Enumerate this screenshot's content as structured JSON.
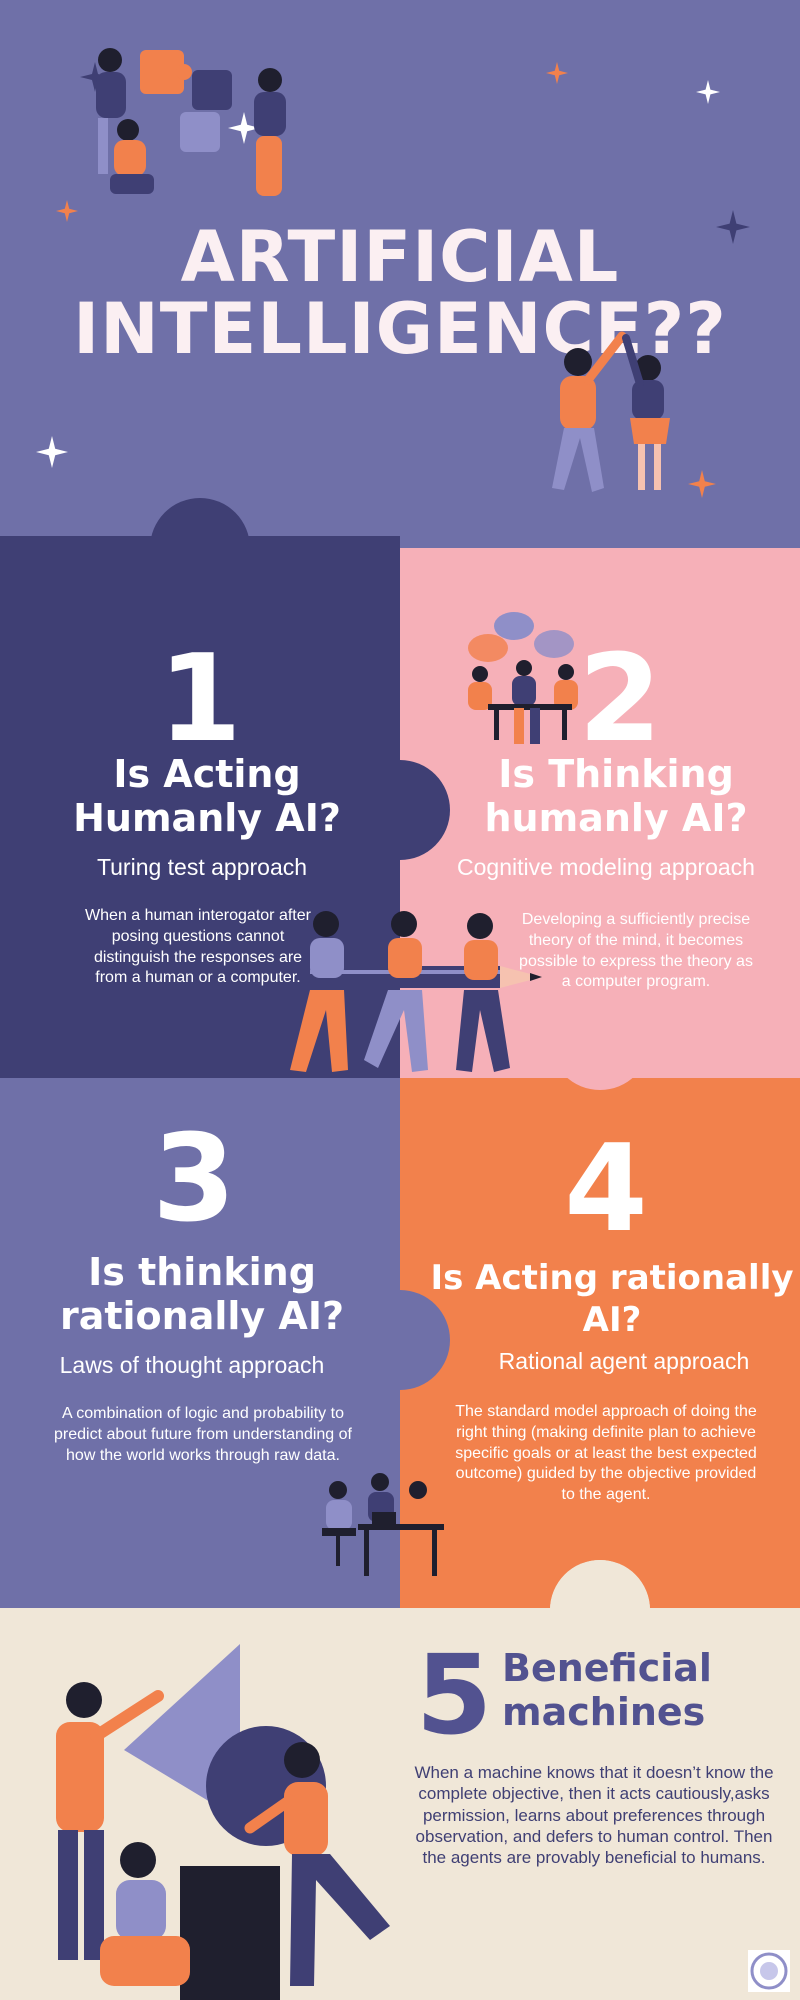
{
  "header": {
    "title_line1": "ARTIFICIAL",
    "title_line2": "INTELLIGENCE??"
  },
  "sections": [
    {
      "number": "1",
      "heading_line1": "Is Acting",
      "heading_line2": "Humanly AI?",
      "approach": "Turing test approach",
      "description": "When a human interogator after posing questions cannot distinguish the responses are from a human or a computer."
    },
    {
      "number": "2",
      "heading_line1": "Is Thinking",
      "heading_line2": "humanly AI?",
      "approach": "Cognitive modeling approach",
      "description": "Developing a sufficiently precise theory of the mind, it becomes possible to express the theory as a computer program."
    },
    {
      "number": "3",
      "heading_line1": "Is thinking",
      "heading_line2": "rationally AI?",
      "approach": "Laws of thought approach",
      "description": "A combination of logic and probability to predict about future from understanding of how the world works through raw data."
    },
    {
      "number": "4",
      "heading_line1": "Is Acting rationally",
      "heading_line2": "AI?",
      "approach": "Rational agent approach",
      "description": "The standard model approach of doing the right thing (making definite plan to achieve specific goals or at least the best expected outcome) guided by the objective provided to the agent."
    },
    {
      "number": "5",
      "heading_line1": "Beneficial",
      "heading_line2": "machines",
      "description": "When a machine knows that it doesn’t know the complete objective, then it acts cautiously,asks permission, learns about preferences through observation, and defers to human control. Then the agents are provably beneficial to humans."
    }
  ],
  "colors": {
    "header_bg": "#6f70a8",
    "dark_navy": "#3f3f74",
    "pink": "#f6b0b8",
    "purple": "#6f70a8",
    "orange": "#f2814c",
    "cream": "#f0e7d8",
    "title_cream": "#fbeff2",
    "text_navy": "#525290"
  },
  "icons": [
    "sparkle-icon",
    "puzzle-team-illustration",
    "high-five-illustration",
    "discussion-illustration",
    "pencil-team-illustration",
    "meeting-illustration",
    "shapes-illustration",
    "logo-badge-icon"
  ]
}
